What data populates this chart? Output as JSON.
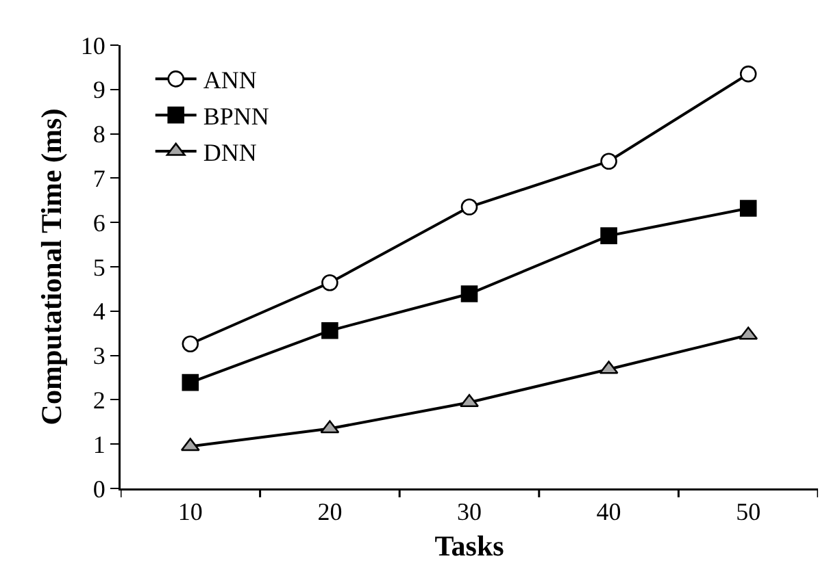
{
  "chart_data": {
    "type": "line",
    "xlabel": "Tasks",
    "ylabel": "Computational Time (ms)",
    "categories": [
      "10",
      "20",
      "30",
      "40",
      "50"
    ],
    "series": [
      {
        "name": "ANN",
        "color": "#ffffff",
        "marker": "circle",
        "values": [
          3.26,
          4.64,
          6.35,
          7.38,
          9.35
        ]
      },
      {
        "name": "BPNN",
        "color": "#000000",
        "marker": "square",
        "values": [
          2.39,
          3.56,
          4.39,
          5.7,
          6.32
        ]
      },
      {
        "name": "DNN",
        "color": "#a6a6a6",
        "marker": "triangle",
        "values": [
          0.95,
          1.35,
          1.94,
          2.69,
          3.46
        ]
      }
    ],
    "ylim": [
      0,
      10
    ],
    "yticks": [
      0,
      1,
      2,
      3,
      4,
      5,
      6,
      7,
      8,
      9,
      10
    ],
    "grid": false,
    "legend": "top left",
    "line_style": "solid"
  }
}
